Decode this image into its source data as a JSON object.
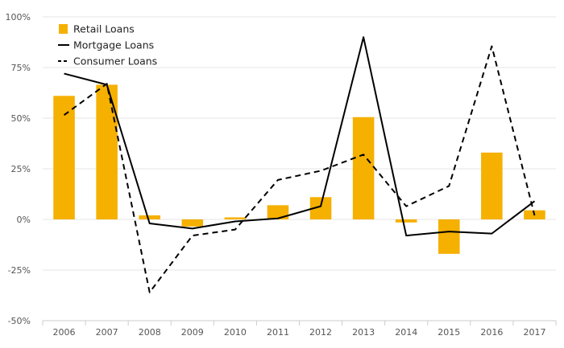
{
  "chart_data": {
    "type": "bar",
    "categories": [
      "2006",
      "2007",
      "2008",
      "2009",
      "2010",
      "2011",
      "2012",
      "2013",
      "2014",
      "2015",
      "2016",
      "2017"
    ],
    "series": [
      {
        "name": "Retail Loans",
        "kind": "bar",
        "color": "#f5b000",
        "values": [
          61,
          66.5,
          2,
          -3.5,
          1,
          7,
          11,
          50.5,
          -1.5,
          -17,
          33,
          4.5
        ]
      },
      {
        "name": "Mortgage Loans",
        "kind": "line",
        "dash": "solid",
        "color": "#000000",
        "values": [
          72,
          66.5,
          -2,
          -4.5,
          -1,
          0.5,
          6.5,
          90,
          -8,
          -6,
          -7,
          9
        ]
      },
      {
        "name": "Consumer Loans",
        "kind": "line",
        "dash": "dashed",
        "color": "#000000",
        "values": [
          51.5,
          67,
          -36,
          -8,
          -5,
          19.5,
          24,
          32,
          6.5,
          16.5,
          85.5,
          2
        ]
      }
    ],
    "ylim": [
      -50,
      100
    ],
    "y_ticks": [
      -50,
      -25,
      0,
      25,
      50,
      75,
      100
    ],
    "y_tick_labels": [
      "-50%",
      "-25%",
      "0%",
      "25%",
      "50%",
      "75%",
      "100%"
    ],
    "grid": true,
    "legend_position": "top-left",
    "title": "",
    "xlabel": "",
    "ylabel": ""
  }
}
